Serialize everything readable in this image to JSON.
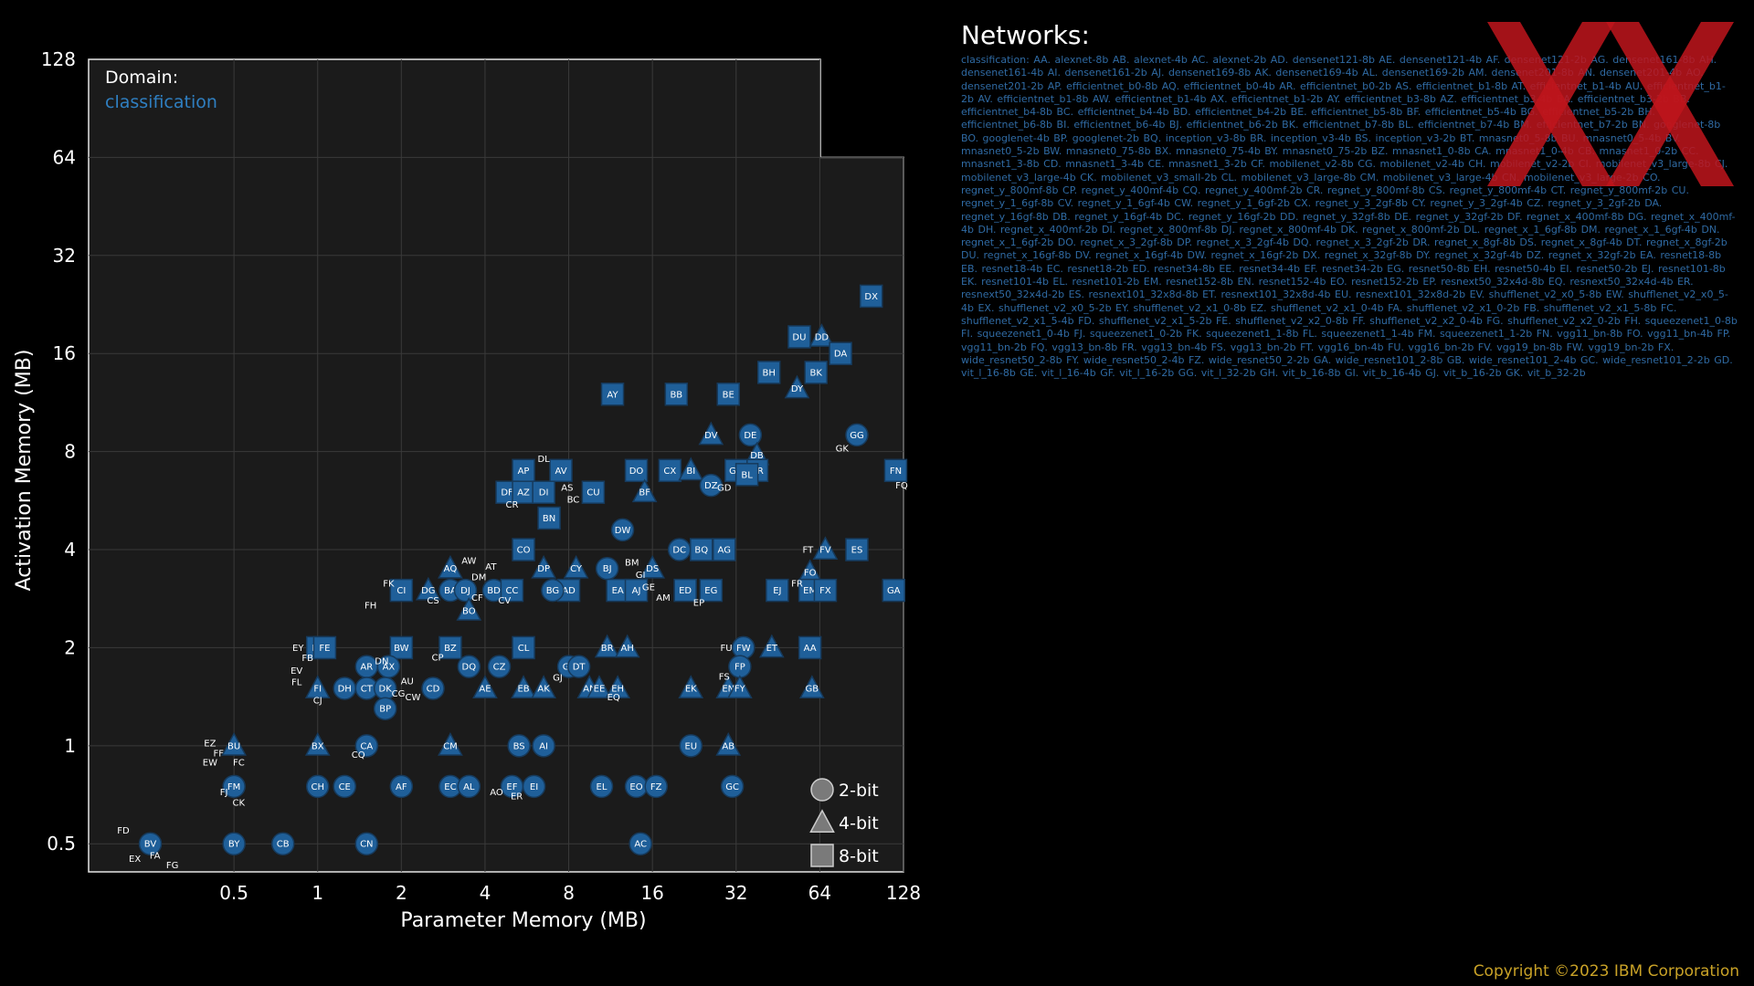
{
  "networks": {
    "title": "Networks:",
    "text": "classification: AA. alexnet-8b AB. alexnet-4b AC. alexnet-2b AD. densenet121-8b AE. densenet121-4b AF. densenet121-2b AG. densenet161-8b AH. densenet161-4b AI. densenet161-2b AJ. densenet169-8b AK. densenet169-4b AL. densenet169-2b AM. densenet201-8b AN. densenet201-4b AO. densenet201-2b AP. efficientnet_b0-8b AQ. efficientnet_b0-4b AR. efficientnet_b0-2b AS. efficientnet_b1-8b AT. efficientnet_b1-4b AU. efficientnet_b1-2b AV. efficientnet_b1-8b AW. efficientnet_b1-4b AX. efficientnet_b1-2b AY. efficientnet_b3-8b AZ. efficientnet_b3-4b BA. efficientnet_b3-2b BB. efficientnet_b4-8b BC. efficientnet_b4-4b BD. efficientnet_b4-2b BE. efficientnet_b5-8b BF. efficientnet_b5-4b BG. efficientnet_b5-2b BH. efficientnet_b6-8b BI. efficientnet_b6-4b BJ. efficientnet_b6-2b BK. efficientnet_b7-8b BL. efficientnet_b7-4b BM. efficientnet_b7-2b BN. googlenet-8b BO. googlenet-4b BP. googlenet-2b BQ. inception_v3-8b BR. inception_v3-4b BS. inception_v3-2b BT. mnasnet0_5-8b BU. mnasnet0_5-4b BV. mnasnet0_5-2b BW. mnasnet0_75-8b BX. mnasnet0_75-4b BY. mnasnet0_75-2b BZ. mnasnet1_0-8b CA. mnasnet1_0-4b CB. mnasnet1_0-2b CC. mnasnet1_3-8b CD. mnasnet1_3-4b CE. mnasnet1_3-2b CF. mobilenet_v2-8b CG. mobilenet_v2-4b CH. mobilenet_v2-2b CI. mobilenet_v3_large-8b CJ. mobilenet_v3_large-4b CK. mobilenet_v3_small-2b CL. mobilenet_v3_large-8b CM. mobilenet_v3_large-4b CN. mobilenet_v3_large-2b CO. regnet_y_800mf-8b CP. regnet_y_400mf-4b CQ. regnet_y_400mf-2b CR. regnet_y_800mf-8b CS. regnet_y_800mf-4b CT. regnet_y_800mf-2b CU. regnet_y_1_6gf-8b CV. regnet_y_1_6gf-4b CW. regnet_y_1_6gf-2b CX. regnet_y_3_2gf-8b CY. regnet_y_3_2gf-4b CZ. regnet_y_3_2gf-2b DA. regnet_y_16gf-8b DB. regnet_y_16gf-4b DC. regnet_y_16gf-2b DD. regnet_y_32gf-8b DE. regnet_y_32gf-2b DF. regnet_x_400mf-8b DG. regnet_x_400mf-4b DH. regnet_x_400mf-2b DI. regnet_x_800mf-8b DJ. regnet_x_800mf-4b DK. regnet_x_800mf-2b DL. regnet_x_1_6gf-8b DM. regnet_x_1_6gf-4b DN. regnet_x_1_6gf-2b DO. regnet_x_3_2gf-8b DP. regnet_x_3_2gf-4b DQ. regnet_x_3_2gf-2b DR. regnet_x_8gf-8b DS. regnet_x_8gf-4b DT. regnet_x_8gf-2b DU. regnet_x_16gf-8b DV. regnet_x_16gf-4b DW. regnet_x_16gf-2b DX. regnet_x_32gf-8b DY. regnet_x_32gf-4b DZ. regnet_x_32gf-2b EA. resnet18-8b EB. resnet18-4b EC. resnet18-2b ED. resnet34-8b EE. resnet34-4b EF. resnet34-2b EG. resnet50-8b EH. resnet50-4b EI. resnet50-2b EJ. resnet101-8b EK. resnet101-4b EL. resnet101-2b EM. resnet152-8b EN. resnet152-4b EO. resnet152-2b EP. resnext50_32x4d-8b EQ. resnext50_32x4d-4b ER. resnext50_32x4d-2b ES. resnext101_32x8d-8b ET. resnext101_32x8d-4b EU. resnext101_32x8d-2b EV. shufflenet_v2_x0_5-8b EW. shufflenet_v2_x0_5-4b EX. shufflenet_v2_x0_5-2b EY. shufflenet_v2_x1_0-8b EZ. shufflenet_v2_x1_0-4b FA. shufflenet_v2_x1_0-2b FB. shufflenet_v2_x1_5-8b FC. shufflenet_v2_x1_5-4b FD. shufflenet_v2_x1_5-2b FE. shufflenet_v2_x2_0-8b FF. shufflenet_v2_x2_0-4b FG. shufflenet_v2_x2_0-2b FH. squeezenet1_0-8b FI. squeezenet1_0-4b FJ. squeezenet1_0-2b FK. squeezenet1_1-8b FL. squeezenet1_1-4b FM. squeezenet1_1-2b FN. vgg11_bn-8b FO. vgg11_bn-4b FP. vgg11_bn-2b FQ. vgg13_bn-8b FR. vgg13_bn-4b FS. vgg13_bn-2b FT. vgg16_bn-4b FU. vgg16_bn-2b FV. vgg19_bn-8b FW. vgg19_bn-2b FX. wide_resnet50_2-8b FY. wide_resnet50_2-4b FZ. wide_resnet50_2-2b GA. wide_resnet101_2-8b GB. wide_resnet101_2-4b GC. wide_resnet101_2-2b GD. vit_l_16-8b GE. vit_l_16-4b GF. vit_l_16-2b GG. vit_l_32-2b GH. vit_b_16-8b GI. vit_b_16-4b GJ. vit_b_16-2b GK. vit_b_32-2b"
  },
  "copyright": "Copyright ©2023 IBM Corporation",
  "colors": {
    "marker": "#1f5f99",
    "marker_stroke": "#163a5c",
    "domain_value": "#2f7fc1",
    "copyright": "#c9a227",
    "watermark": "#c0151c"
  },
  "chart_data": {
    "type": "scatter",
    "xlabel": "Parameter Memory (MB)",
    "ylabel": "Activation Memory (MB)",
    "x_scale": "log2",
    "y_scale": "log2",
    "xlim": [
      0.15,
      128
    ],
    "ylim": [
      0.41,
      128
    ],
    "x_ticks": [
      "0.5",
      "1",
      "2",
      "4",
      "8",
      "16",
      "32",
      "64",
      "128"
    ],
    "y_ticks": [
      "0.5",
      "1",
      "2",
      "4",
      "8",
      "16",
      "32",
      "64",
      "128"
    ],
    "grid": true,
    "domain_label": "Domain:",
    "domain_value": "classification",
    "legend": [
      {
        "shape": "circle",
        "label": "2-bit"
      },
      {
        "shape": "triangle",
        "label": "4-bit"
      },
      {
        "shape": "square",
        "label": "8-bit"
      }
    ],
    "points": [
      {
        "id": "DX",
        "x": 98,
        "y": 24,
        "m": "s"
      },
      {
        "id": "DU",
        "x": 54,
        "y": 18,
        "m": "s"
      },
      {
        "id": "DD",
        "x": 65,
        "y": 18,
        "m": "t"
      },
      {
        "id": "DA",
        "x": 76,
        "y": 16,
        "m": "s"
      },
      {
        "id": "BH",
        "x": 42,
        "y": 14,
        "m": "s"
      },
      {
        "id": "BK",
        "x": 62,
        "y": 14,
        "m": "s"
      },
      {
        "id": "DY",
        "x": 53,
        "y": 12.5,
        "m": "t"
      },
      {
        "id": "AY",
        "x": 11.5,
        "y": 12,
        "m": "s"
      },
      {
        "id": "BB",
        "x": 19.5,
        "y": 12,
        "m": "s"
      },
      {
        "id": "BE",
        "x": 30,
        "y": 12,
        "m": "s"
      },
      {
        "id": "DV",
        "x": 26,
        "y": 9,
        "m": "t"
      },
      {
        "id": "DE",
        "x": 36,
        "y": 9,
        "m": "c"
      },
      {
        "id": "GG",
        "x": 87,
        "y": 9,
        "m": "c"
      },
      {
        "id": "DB",
        "x": 38,
        "y": 7.8,
        "m": "t"
      },
      {
        "id": "DR",
        "x": 38,
        "y": 7,
        "m": "s"
      },
      {
        "id": "GH",
        "x": 32,
        "y": 7,
        "m": "s"
      },
      {
        "id": "BL",
        "x": 35,
        "y": 6.8,
        "m": "s"
      },
      {
        "id": "DO",
        "x": 14,
        "y": 7,
        "m": "s"
      },
      {
        "id": "CX",
        "x": 18.5,
        "y": 7,
        "m": "s"
      },
      {
        "id": "BI",
        "x": 22,
        "y": 7,
        "m": "t"
      },
      {
        "id": "DZ",
        "x": 26,
        "y": 6.3,
        "m": "c"
      },
      {
        "id": "AP",
        "x": 5.5,
        "y": 7,
        "m": "s"
      },
      {
        "id": "AV",
        "x": 7.5,
        "y": 7,
        "m": "s"
      },
      {
        "id": "FN",
        "x": 120,
        "y": 7,
        "m": "s"
      },
      {
        "id": "DF",
        "x": 4.8,
        "y": 6,
        "m": "s"
      },
      {
        "id": "AZ",
        "x": 5.5,
        "y": 6,
        "m": "s"
      },
      {
        "id": "DI",
        "x": 6.5,
        "y": 6,
        "m": "s"
      },
      {
        "id": "CU",
        "x": 9.8,
        "y": 6,
        "m": "s"
      },
      {
        "id": "BF",
        "x": 15,
        "y": 6,
        "m": "t"
      },
      {
        "id": "BN",
        "x": 6.8,
        "y": 5,
        "m": "s"
      },
      {
        "id": "DW",
        "x": 12.5,
        "y": 4.6,
        "m": "c"
      },
      {
        "id": "CO",
        "x": 5.5,
        "y": 4,
        "m": "s"
      },
      {
        "id": "DC",
        "x": 20,
        "y": 4,
        "m": "c"
      },
      {
        "id": "BQ",
        "x": 24,
        "y": 4,
        "m": "s"
      },
      {
        "id": "AG",
        "x": 29,
        "y": 4,
        "m": "s"
      },
      {
        "id": "FV",
        "x": 67,
        "y": 4,
        "m": "t"
      },
      {
        "id": "ES",
        "x": 87,
        "y": 4,
        "m": "s"
      },
      {
        "id": "BJ",
        "x": 11,
        "y": 3.5,
        "m": "c"
      },
      {
        "id": "CY",
        "x": 8.5,
        "y": 3.5,
        "m": "t"
      },
      {
        "id": "DP",
        "x": 6.5,
        "y": 3.5,
        "m": "t"
      },
      {
        "id": "DS",
        "x": 16,
        "y": 3.5,
        "m": "t"
      },
      {
        "id": "FO",
        "x": 59,
        "y": 3.4,
        "m": "t"
      },
      {
        "id": "AQ",
        "x": 3,
        "y": 3.5,
        "m": "t"
      },
      {
        "id": "EA",
        "x": 12,
        "y": 3,
        "m": "s"
      },
      {
        "id": "AJ",
        "x": 14,
        "y": 3,
        "m": "s"
      },
      {
        "id": "ED",
        "x": 21,
        "y": 3,
        "m": "s"
      },
      {
        "id": "EG",
        "x": 26,
        "y": 3,
        "m": "s"
      },
      {
        "id": "EJ",
        "x": 45,
        "y": 3,
        "m": "s"
      },
      {
        "id": "EM",
        "x": 59,
        "y": 3,
        "m": "s"
      },
      {
        "id": "FX",
        "x": 67,
        "y": 3,
        "m": "s"
      },
      {
        "id": "GA",
        "x": 118,
        "y": 3,
        "m": "s"
      },
      {
        "id": "AD",
        "x": 8,
        "y": 3,
        "m": "s"
      },
      {
        "id": "BG",
        "x": 7,
        "y": 3,
        "m": "c"
      },
      {
        "id": "CI",
        "x": 2,
        "y": 3,
        "m": "s"
      },
      {
        "id": "DG",
        "x": 2.5,
        "y": 3,
        "m": "t"
      },
      {
        "id": "BA",
        "x": 3,
        "y": 3,
        "m": "c"
      },
      {
        "id": "DJ",
        "x": 3.4,
        "y": 3,
        "m": "c"
      },
      {
        "id": "BD",
        "x": 4.3,
        "y": 3,
        "m": "c"
      },
      {
        "id": "CC",
        "x": 5,
        "y": 3,
        "m": "s"
      },
      {
        "id": "BO",
        "x": 3.5,
        "y": 2.6,
        "m": "t"
      },
      {
        "id": "BT",
        "x": 1,
        "y": 2,
        "m": "s"
      },
      {
        "id": "FE",
        "x": 1.06,
        "y": 2,
        "m": "s"
      },
      {
        "id": "BW",
        "x": 2,
        "y": 2,
        "m": "s"
      },
      {
        "id": "BZ",
        "x": 3,
        "y": 2,
        "m": "s"
      },
      {
        "id": "CL",
        "x": 5.5,
        "y": 2,
        "m": "s"
      },
      {
        "id": "BR",
        "x": 11,
        "y": 2,
        "m": "t"
      },
      {
        "id": "AH",
        "x": 13,
        "y": 2,
        "m": "t"
      },
      {
        "id": "FW",
        "x": 34,
        "y": 2,
        "m": "c"
      },
      {
        "id": "ET",
        "x": 43,
        "y": 2,
        "m": "t"
      },
      {
        "id": "AA",
        "x": 59,
        "y": 2,
        "m": "s"
      },
      {
        "id": "AR",
        "x": 1.5,
        "y": 1.75,
        "m": "c"
      },
      {
        "id": "AX",
        "x": 1.8,
        "y": 1.75,
        "m": "c"
      },
      {
        "id": "DQ",
        "x": 3.5,
        "y": 1.75,
        "m": "c"
      },
      {
        "id": "CZ",
        "x": 4.5,
        "y": 1.75,
        "m": "c"
      },
      {
        "id": "GF",
        "x": 8,
        "y": 1.75,
        "m": "c"
      },
      {
        "id": "DT",
        "x": 8.7,
        "y": 1.75,
        "m": "c"
      },
      {
        "id": "FP",
        "x": 33,
        "y": 1.75,
        "m": "c"
      },
      {
        "id": "DH",
        "x": 1.25,
        "y": 1.5,
        "m": "c"
      },
      {
        "id": "CT",
        "x": 1.5,
        "y": 1.5,
        "m": "c"
      },
      {
        "id": "DK",
        "x": 1.75,
        "y": 1.5,
        "m": "c"
      },
      {
        "id": "CD",
        "x": 2.6,
        "y": 1.5,
        "m": "c"
      },
      {
        "id": "AE",
        "x": 4,
        "y": 1.5,
        "m": "t"
      },
      {
        "id": "EB",
        "x": 5.5,
        "y": 1.5,
        "m": "t"
      },
      {
        "id": "AK",
        "x": 6.5,
        "y": 1.5,
        "m": "t"
      },
      {
        "id": "AN",
        "x": 9.5,
        "y": 1.5,
        "m": "t"
      },
      {
        "id": "EE",
        "x": 10.3,
        "y": 1.5,
        "m": "t"
      },
      {
        "id": "EH",
        "x": 12,
        "y": 1.5,
        "m": "t"
      },
      {
        "id": "EK",
        "x": 22,
        "y": 1.5,
        "m": "t"
      },
      {
        "id": "EN",
        "x": 30,
        "y": 1.5,
        "m": "t"
      },
      {
        "id": "FY",
        "x": 33,
        "y": 1.5,
        "m": "t"
      },
      {
        "id": "GB",
        "x": 60,
        "y": 1.5,
        "m": "t"
      },
      {
        "id": "FI",
        "x": 1,
        "y": 1.5,
        "m": "t"
      },
      {
        "id": "BP",
        "x": 1.75,
        "y": 1.3,
        "m": "c"
      },
      {
        "id": "BU",
        "x": 0.5,
        "y": 1,
        "m": "t"
      },
      {
        "id": "BX",
        "x": 1,
        "y": 1,
        "m": "t"
      },
      {
        "id": "CA",
        "x": 1.5,
        "y": 1,
        "m": "c"
      },
      {
        "id": "CM",
        "x": 3,
        "y": 1,
        "m": "t"
      },
      {
        "id": "BS",
        "x": 5.3,
        "y": 1,
        "m": "c"
      },
      {
        "id": "AI",
        "x": 6.5,
        "y": 1,
        "m": "c"
      },
      {
        "id": "EU",
        "x": 22,
        "y": 1,
        "m": "c"
      },
      {
        "id": "AB",
        "x": 30,
        "y": 1,
        "m": "t"
      },
      {
        "id": "FM",
        "x": 0.5,
        "y": 0.75,
        "m": "c"
      },
      {
        "id": "CH",
        "x": 1,
        "y": 0.75,
        "m": "c"
      },
      {
        "id": "CE",
        "x": 1.25,
        "y": 0.75,
        "m": "c"
      },
      {
        "id": "AF",
        "x": 2,
        "y": 0.75,
        "m": "c"
      },
      {
        "id": "EC",
        "x": 3,
        "y": 0.75,
        "m": "c"
      },
      {
        "id": "AL",
        "x": 3.5,
        "y": 0.75,
        "m": "c"
      },
      {
        "id": "EF",
        "x": 5,
        "y": 0.75,
        "m": "c"
      },
      {
        "id": "EI",
        "x": 6,
        "y": 0.75,
        "m": "c"
      },
      {
        "id": "EL",
        "x": 10.5,
        "y": 0.75,
        "m": "c"
      },
      {
        "id": "EO",
        "x": 14,
        "y": 0.75,
        "m": "c"
      },
      {
        "id": "FZ",
        "x": 16.5,
        "y": 0.75,
        "m": "c"
      },
      {
        "id": "GC",
        "x": 31,
        "y": 0.75,
        "m": "c"
      },
      {
        "id": "BV",
        "x": 0.25,
        "y": 0.5,
        "m": "c"
      },
      {
        "id": "BY",
        "x": 0.5,
        "y": 0.5,
        "m": "c"
      },
      {
        "id": "CB",
        "x": 0.75,
        "y": 0.5,
        "m": "c"
      },
      {
        "id": "CN",
        "x": 1.5,
        "y": 0.5,
        "m": "c"
      },
      {
        "id": "AC",
        "x": 14.5,
        "y": 0.5,
        "m": "c"
      }
    ],
    "labels": [
      {
        "t": "DL",
        "x": 6.5,
        "y": 7.6
      },
      {
        "t": "AS",
        "x": 7.9,
        "y": 6.2
      },
      {
        "t": "BC",
        "x": 8.3,
        "y": 5.7
      },
      {
        "t": "CR",
        "x": 5,
        "y": 5.5
      },
      {
        "t": "GD",
        "x": 29,
        "y": 6.2
      },
      {
        "t": "FQ",
        "x": 126,
        "y": 6.3
      },
      {
        "t": "BM",
        "x": 13.5,
        "y": 3.65
      },
      {
        "t": "GI",
        "x": 14.5,
        "y": 3.35
      },
      {
        "t": "GE",
        "x": 15.5,
        "y": 3.07
      },
      {
        "t": "AM",
        "x": 17.5,
        "y": 2.85
      },
      {
        "t": "EP",
        "x": 23.5,
        "y": 2.75
      },
      {
        "t": "FT",
        "x": 58,
        "y": 4
      },
      {
        "t": "FR",
        "x": 53,
        "y": 3.15
      },
      {
        "t": "FK",
        "x": 1.8,
        "y": 3.15
      },
      {
        "t": "FH",
        "x": 1.55,
        "y": 2.7
      },
      {
        "t": "CS",
        "x": 2.6,
        "y": 2.8
      },
      {
        "t": "CF",
        "x": 3.75,
        "y": 2.85
      },
      {
        "t": "CV",
        "x": 4.7,
        "y": 2.8
      },
      {
        "t": "AW",
        "x": 3.5,
        "y": 3.7
      },
      {
        "t": "AT",
        "x": 4.2,
        "y": 3.55
      },
      {
        "t": "DM",
        "x": 3.8,
        "y": 3.3
      },
      {
        "t": "EY",
        "x": 0.85,
        "y": 2
      },
      {
        "t": "FB",
        "x": 0.92,
        "y": 1.86
      },
      {
        "t": "EV",
        "x": 0.84,
        "y": 1.7
      },
      {
        "t": "FL",
        "x": 0.84,
        "y": 1.57
      },
      {
        "t": "CJ",
        "x": 1.0,
        "y": 1.38
      },
      {
        "t": "DN",
        "x": 1.7,
        "y": 1.82
      },
      {
        "t": "CP",
        "x": 2.7,
        "y": 1.87
      },
      {
        "t": "AU",
        "x": 2.1,
        "y": 1.58
      },
      {
        "t": "CG",
        "x": 1.95,
        "y": 1.45
      },
      {
        "t": "CW",
        "x": 2.2,
        "y": 1.41
      },
      {
        "t": "GJ",
        "x": 7.3,
        "y": 1.62
      },
      {
        "t": "EQ",
        "x": 11.6,
        "y": 1.41
      },
      {
        "t": "FU",
        "x": 29.5,
        "y": 2
      },
      {
        "t": "FS",
        "x": 29,
        "y": 1.63
      },
      {
        "t": "CQ",
        "x": 1.4,
        "y": 0.94
      },
      {
        "t": "EZ",
        "x": 0.41,
        "y": 1.02
      },
      {
        "t": "FF",
        "x": 0.44,
        "y": 0.95
      },
      {
        "t": "FC",
        "x": 0.52,
        "y": 0.89
      },
      {
        "t": "EW",
        "x": 0.41,
        "y": 0.89
      },
      {
        "t": "FJ",
        "x": 0.46,
        "y": 0.72
      },
      {
        "t": "CK",
        "x": 0.52,
        "y": 0.67
      },
      {
        "t": "AO",
        "x": 4.4,
        "y": 0.72
      },
      {
        "t": "ER",
        "x": 5.2,
        "y": 0.7
      },
      {
        "t": "FD",
        "x": 0.2,
        "y": 0.55
      },
      {
        "t": "EX",
        "x": 0.22,
        "y": 0.45
      },
      {
        "t": "FA",
        "x": 0.26,
        "y": 0.46
      },
      {
        "t": "FG",
        "x": 0.3,
        "y": 0.43
      },
      {
        "t": "GK",
        "x": 77,
        "y": 8.2
      }
    ]
  }
}
